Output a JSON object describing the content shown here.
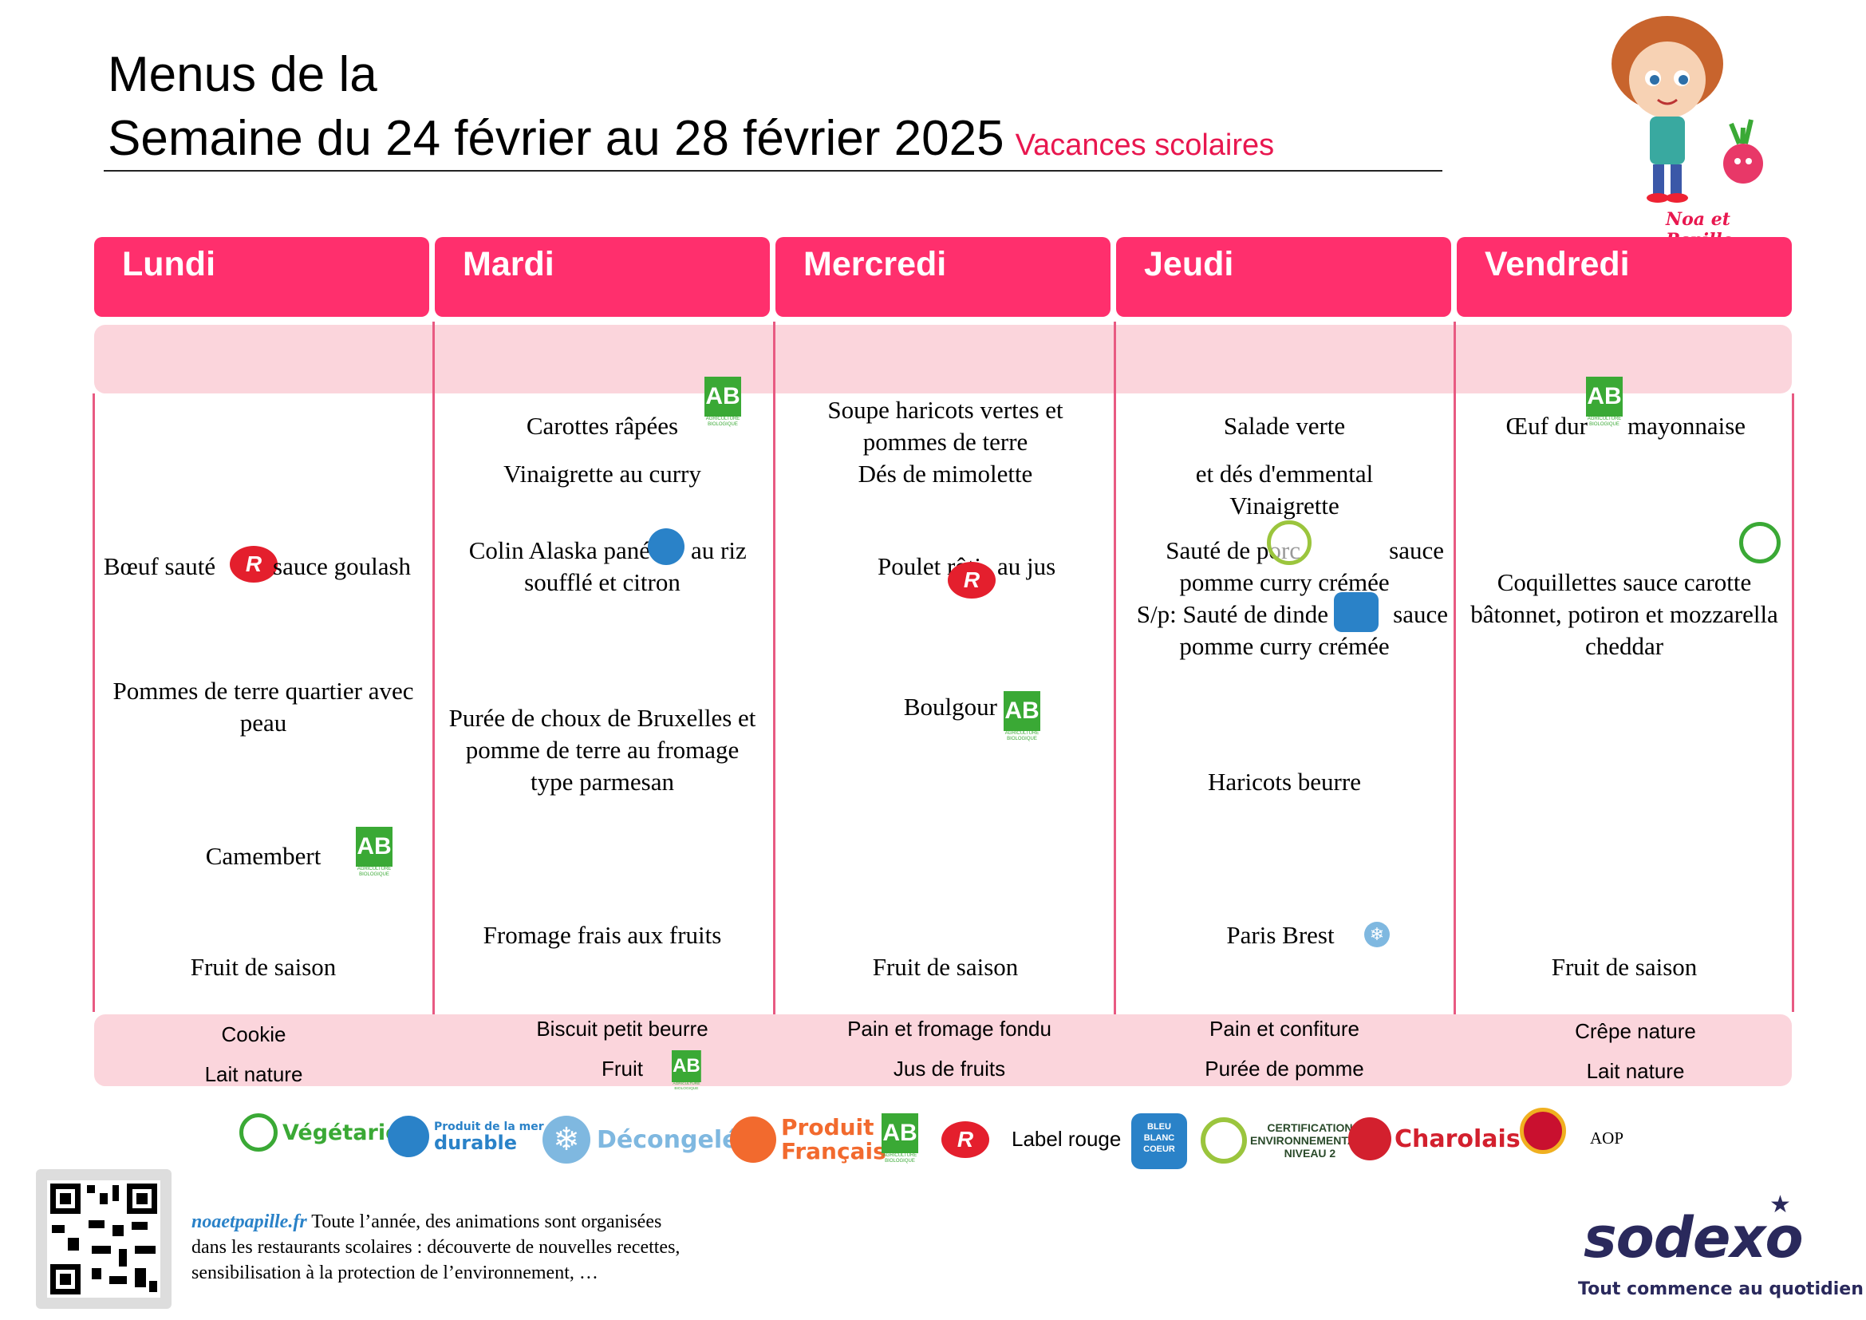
{
  "header": {
    "title_line1": "Menus de la",
    "title_line2": "Semaine du 24 février au 28 février 2025",
    "subtitle": "Vacances scolaires",
    "mascot_caption": "Noa et Papille"
  },
  "days": [
    {
      "name": "Lundi",
      "items": [
        "Bœuf sauté",
        "sauce goulash",
        "Pommes de terre quartier avec peau",
        "Camembert",
        "Fruit de saison"
      ],
      "gouter": [
        "Cookie",
        "Lait nature"
      ]
    },
    {
      "name": "Mardi",
      "items": [
        "Carottes râpées",
        "Vinaigrette au curry",
        "Colin Alaska pané",
        "au riz",
        "soufflé et citron",
        "Purée de choux de Bruxelles et",
        "pomme de terre au fromage",
        "type parmesan",
        "Fromage frais aux fruits"
      ],
      "gouter": [
        "Biscuit petit beurre",
        "Fruit"
      ]
    },
    {
      "name": "Mercredi",
      "items": [
        "Soupe haricots vertes et",
        "pommes de terre",
        "Dés de mimolette",
        "Poulet rôti",
        "au jus",
        "Boulgour",
        "Fruit de saison"
      ],
      "gouter": [
        "Pain et fromage fondu",
        "Jus de fruits"
      ]
    },
    {
      "name": "Jeudi",
      "items": [
        "Salade verte",
        "et dés d'emmental",
        "Vinaigrette",
        "Sauté de porc",
        "sauce",
        "pomme curry crémée",
        "S/p: Sauté de dinde",
        "sauce",
        "pomme curry crémée",
        "Haricots beurre",
        "Paris Brest"
      ],
      "gouter": [
        "Pain et confiture",
        "Purée de pomme"
      ]
    },
    {
      "name": "Vendredi",
      "items": [
        "Œuf dur",
        "mayonnaise",
        "Coquillettes sauce carotte",
        "bâtonnet, potiron et mozzarella",
        "cheddar",
        "Fruit de saison"
      ],
      "gouter": [
        "Crêpe nature",
        "Lait nature"
      ]
    }
  ],
  "legend": {
    "vegetarien": "Végétarien",
    "peche_line1": "Produit de la mer",
    "peche_line2": "durable",
    "decongele": "Décongelé",
    "produit_line1": "Produit",
    "produit_line2": "Français",
    "label_rouge": "Label rouge",
    "bbc_line1": "BLEU",
    "bbc_line2": "BLANC",
    "bbc_line3": "COEUR",
    "cert_line1": "CERTIFICATION",
    "cert_line2": "ENVIRONNEMENTALE",
    "cert_line3": "NIVEAU 2",
    "charolais": "Charolais",
    "aop": "AOP",
    "ab_text": "AB"
  },
  "footer": {
    "site": "noaetpapille.fr",
    "text1": " Toute l’année, des animations sont organisées",
    "text2": "dans les restaurants scolaires : découverte de nouvelles recettes,",
    "text3": "sensibilisation à la protection de l’environnement, …",
    "brand": "sodexo",
    "tagline": "Tout commence au quotidien"
  },
  "colors": {
    "day_header": "#ff2f6d",
    "band": "#fbd5dc",
    "subtitle": "#e8174f",
    "sodexo_blue": "#2a295c"
  }
}
